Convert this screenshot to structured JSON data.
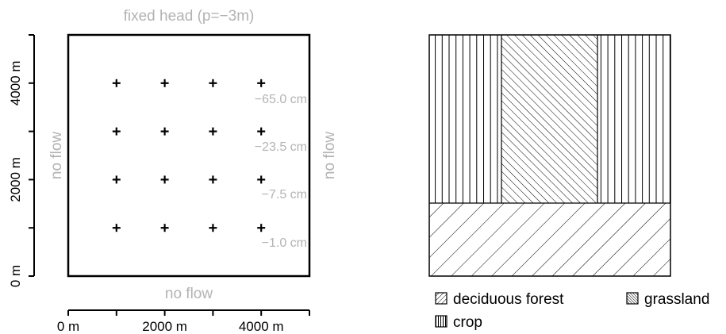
{
  "left_panel": {
    "top_label": "fixed head (p=−3m)",
    "bottom_label": "no flow",
    "left_label": "no flow",
    "right_label": "no flow",
    "x_ticks": [
      "0 m",
      "2000 m",
      "4000 m"
    ],
    "y_ticks": [
      "0 m",
      "2000 m",
      "4000 m"
    ],
    "observation_points": {
      "x_m": [
        1000,
        2000,
        3000,
        4000
      ],
      "y_m": [
        1000,
        2000,
        3000,
        4000
      ],
      "marker": "plus"
    },
    "row_values": [
      {
        "y_m": 4000,
        "label": "−65.0 cm"
      },
      {
        "y_m": 3000,
        "label": "−23.5 cm"
      },
      {
        "y_m": 2000,
        "label": "−7.5 cm"
      },
      {
        "y_m": 1000,
        "label": "−1.0 cm"
      }
    ]
  },
  "right_panel": {
    "regions": [
      {
        "name": "crop",
        "pattern": "vertical-lines"
      },
      {
        "name": "grassland",
        "pattern": "dense-diagonal"
      },
      {
        "name": "deciduous forest",
        "pattern": "sparse-diagonal"
      }
    ],
    "legend": {
      "deciduous_forest": "deciduous forest",
      "grassland": "grassland",
      "crop": "crop"
    }
  }
}
